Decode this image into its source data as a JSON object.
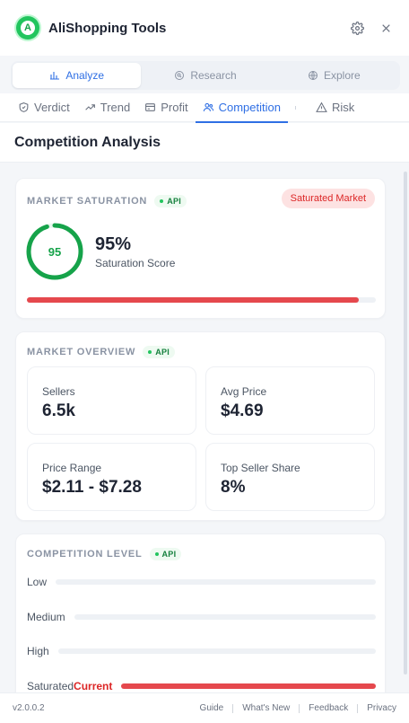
{
  "app": {
    "title": "AliShopping Tools",
    "logo_letter": "A"
  },
  "mode_tabs": [
    {
      "label": "Analyze",
      "icon": "bar-chart-icon",
      "active": true
    },
    {
      "label": "Research",
      "icon": "search-circle-icon",
      "active": false
    },
    {
      "label": "Explore",
      "icon": "globe-icon",
      "active": false
    }
  ],
  "sub_tabs": [
    {
      "label": "Verdict",
      "icon": "shield-check-icon"
    },
    {
      "label": "Trend",
      "icon": "trend-up-icon"
    },
    {
      "label": "Profit",
      "icon": "wallet-icon"
    },
    {
      "label": "Competition",
      "icon": "users-icon",
      "active": true
    },
    {
      "label": "Risk",
      "icon": "warning-triangle-icon"
    }
  ],
  "page_title": "Competition Analysis",
  "saturation": {
    "label": "MARKET SATURATION",
    "api": "API",
    "badge": "Saturated Market",
    "ring_value": "95",
    "score": "95%",
    "score_label": "Saturation Score",
    "percent": 95,
    "bar_fill": 0.95,
    "color": "#16a34a"
  },
  "overview": {
    "label": "MARKET OVERVIEW",
    "api": "API",
    "stats": [
      {
        "label": "Sellers",
        "value": "6.5k"
      },
      {
        "label": "Avg Price",
        "value": "$4.69"
      },
      {
        "label": "Price Range",
        "value": "$2.11 - $7.28"
      },
      {
        "label": "Top Seller Share",
        "value": "8%"
      }
    ]
  },
  "competition": {
    "label": "COMPETITION LEVEL",
    "api": "API",
    "levels": [
      {
        "label": "Low"
      },
      {
        "label": "Medium"
      },
      {
        "label": "High"
      },
      {
        "label": "Saturated",
        "current": "Current"
      }
    ]
  },
  "footer": {
    "version": "v2.0.0.2",
    "links": [
      "Guide",
      "What's New",
      "Feedback",
      "Privacy"
    ]
  },
  "colors": {
    "accent": "#2f6fe4",
    "danger": "#e5484d",
    "success": "#22c55e"
  }
}
